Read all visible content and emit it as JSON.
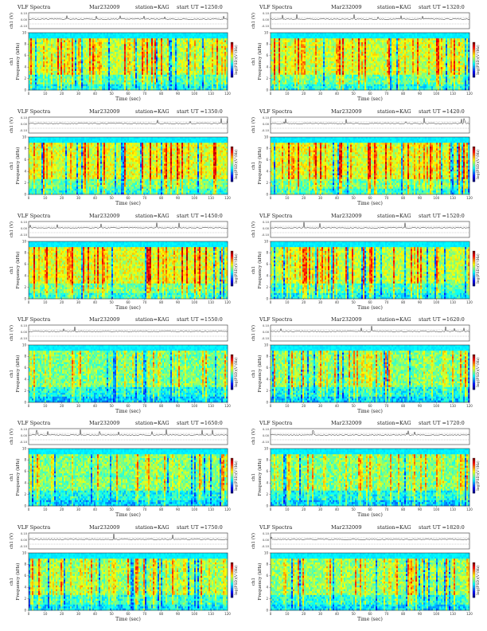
{
  "page_title": "VLF Spectra grid",
  "common": {
    "label": "VLF Spectra",
    "date": "Mar232009",
    "station": "station=KAG",
    "ch_label": "ch1 (V)",
    "freq_label": "Frequency (kHz)",
    "side_label": "ch1",
    "time_label": "Time (sec)",
    "cbar_label": "log(PSD)(V²/Hz)"
  },
  "panels": [
    {
      "ut": "start  UT =1250:0"
    },
    {
      "ut": "start  UT =1320:0"
    },
    {
      "ut": "start  UT =1350:0"
    },
    {
      "ut": "start  UT =1420:0"
    },
    {
      "ut": "start  UT =1450:0"
    },
    {
      "ut": "start  UT =1520:0"
    },
    {
      "ut": "start  UT =1550:0"
    },
    {
      "ut": "start  UT =1620:0"
    },
    {
      "ut": "start  UT =1650:0"
    },
    {
      "ut": "start  UT =1720:0"
    },
    {
      "ut": "start  UT =1750:0"
    },
    {
      "ut": "start  UT =1820:0"
    }
  ],
  "chart_data": {
    "type": "heatmap",
    "xlabel": "Time (sec)",
    "ylabel": "Frequency (kHz)",
    "xlim": [
      0,
      120
    ],
    "ylim": [
      0,
      10
    ],
    "x_ticks": [
      0,
      10,
      20,
      30,
      40,
      50,
      60,
      70,
      80,
      90,
      100,
      110,
      120
    ],
    "y_ticks": [
      0,
      2,
      4,
      6,
      8,
      10
    ],
    "waveform_ticks": [
      "0.10",
      "0.00",
      "-0.10"
    ],
    "colorbar": "jet",
    "colors": {
      "red": "#d7191c",
      "yellow": "#f5e600",
      "green": "#33cc33",
      "cyan": "#00d8e8",
      "blue": "#1030d0"
    }
  }
}
